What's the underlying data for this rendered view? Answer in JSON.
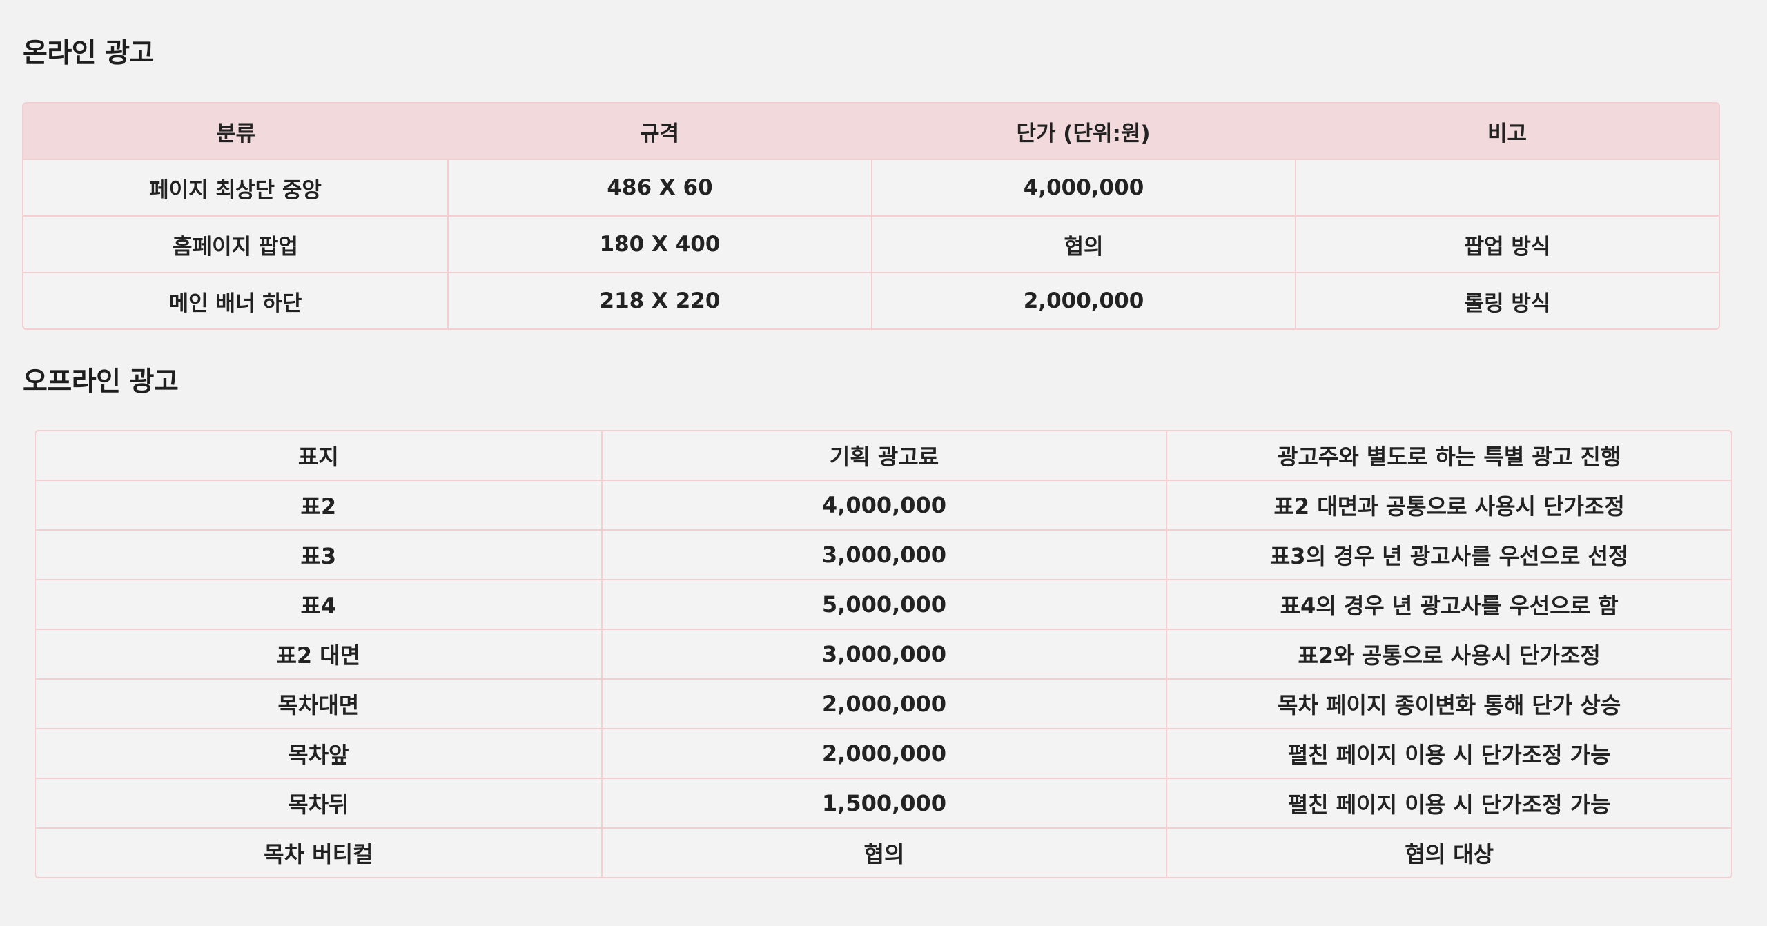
{
  "online": {
    "title": "온라인 광고",
    "headers": [
      "분류",
      "규격",
      "단가 (단위:원)",
      "비고"
    ],
    "rows": [
      [
        "페이지 최상단 중앙",
        "486 X 60",
        "4,000,000",
        ""
      ],
      [
        "홈페이지 팝업",
        "180 X 400",
        "협의",
        "팝업 방식"
      ],
      [
        "메인 배너 하단",
        "218 X 220",
        "2,000,000",
        "롤링 방식"
      ]
    ]
  },
  "offline": {
    "title": "오프라인 광고",
    "rows": [
      [
        "표지",
        "기획 광고료",
        "광고주와 별도로 하는 특별 광고 진행"
      ],
      [
        "표2",
        "4,000,000",
        "표2 대면과 공통으로 사용시 단가조정"
      ],
      [
        "표3",
        "3,000,000",
        "표3의 경우 년 광고사를 우선으로 선정"
      ],
      [
        "표4",
        "5,000,000",
        "표4의 경우 년 광고사를 우선으로 함"
      ],
      [
        "표2 대면",
        "3,000,000",
        "표2와 공통으로 사용시 단가조정"
      ],
      [
        "목차대면",
        "2,000,000",
        "목차 페이지 종이변화 통해 단가 상승"
      ],
      [
        "목차앞",
        "2,000,000",
        "펼친 페이지 이용 시 단가조정 가능"
      ],
      [
        "목차뒤",
        "1,500,000",
        "펼친 페이지 이용 시 단가조정 가능"
      ],
      [
        "목차 버티컬",
        "협의",
        "협의 대상"
      ]
    ]
  }
}
